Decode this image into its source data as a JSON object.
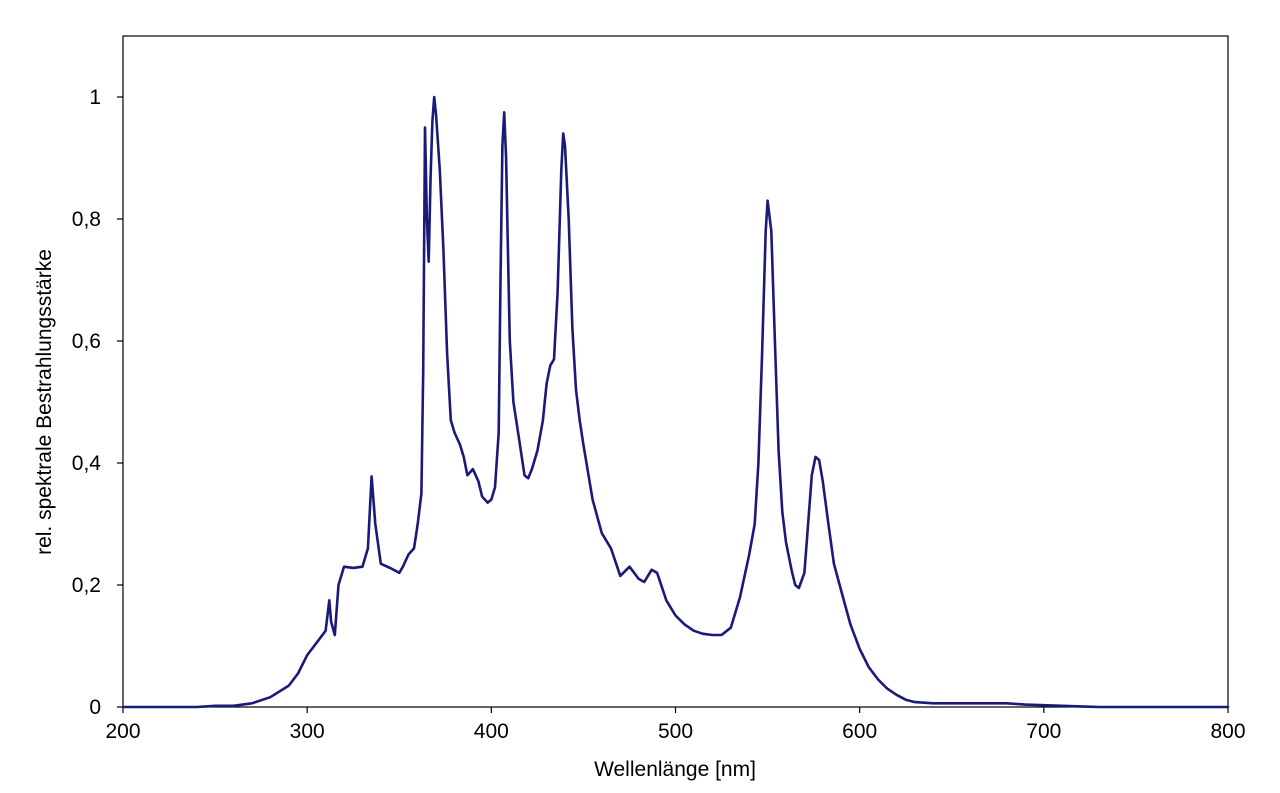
{
  "chart_data": {
    "type": "line",
    "title": "",
    "xlabel": "Wellenlänge [nm]",
    "ylabel": "rel. spektrale Bestrahlungsstärke",
    "xlim": [
      200,
      800
    ],
    "ylim": [
      0,
      1.1
    ],
    "x_ticks": [
      200,
      300,
      400,
      500,
      600,
      700,
      800
    ],
    "x_tick_labels": [
      "200",
      "300",
      "400",
      "500",
      "600",
      "700",
      "800"
    ],
    "y_ticks": [
      0,
      0.2,
      0.4,
      0.6,
      0.8,
      1.0
    ],
    "y_tick_labels": [
      "0",
      "0,2",
      "0,4",
      "0,6",
      "0,8",
      "1"
    ],
    "grid": false,
    "legend": "none",
    "line_color": "#1a1a7a",
    "series": [
      {
        "x": [
          200,
          240,
          250,
          260,
          270,
          280,
          290,
          295,
          300,
          305,
          310,
          312,
          313,
          315,
          317,
          320,
          325,
          330,
          333,
          335,
          337,
          340,
          345,
          350,
          352,
          355,
          358,
          360,
          362,
          363,
          364,
          365,
          366,
          367,
          368,
          369,
          370,
          372,
          374,
          376,
          378,
          380,
          383,
          385,
          387,
          390,
          393,
          395,
          398,
          400,
          402,
          404,
          405,
          406,
          407,
          408,
          409,
          410,
          412,
          415,
          418,
          420,
          422,
          425,
          428,
          430,
          432,
          434,
          436,
          438,
          439,
          440,
          442,
          444,
          446,
          448,
          450,
          455,
          460,
          465,
          470,
          475,
          480,
          483,
          485,
          487,
          490,
          495,
          500,
          505,
          510,
          515,
          520,
          525,
          530,
          535,
          540,
          543,
          545,
          547,
          549,
          550,
          552,
          554,
          556,
          558,
          560,
          563,
          565,
          567,
          570,
          572,
          574,
          576,
          578,
          580,
          583,
          586,
          590,
          595,
          600,
          605,
          610,
          615,
          620,
          625,
          630,
          640,
          650,
          660,
          670,
          680,
          690,
          700,
          710,
          720,
          730,
          740,
          800
        ],
        "y": [
          0,
          0,
          0.002,
          0.002,
          0.006,
          0.016,
          0.035,
          0.055,
          0.085,
          0.105,
          0.125,
          0.175,
          0.14,
          0.118,
          0.2,
          0.23,
          0.228,
          0.23,
          0.26,
          0.378,
          0.3,
          0.235,
          0.228,
          0.22,
          0.23,
          0.25,
          0.26,
          0.3,
          0.35,
          0.55,
          0.95,
          0.8,
          0.73,
          0.87,
          0.96,
          1.0,
          0.97,
          0.88,
          0.75,
          0.58,
          0.47,
          0.45,
          0.43,
          0.41,
          0.38,
          0.39,
          0.37,
          0.345,
          0.335,
          0.34,
          0.36,
          0.45,
          0.7,
          0.92,
          0.975,
          0.9,
          0.75,
          0.6,
          0.5,
          0.44,
          0.38,
          0.375,
          0.39,
          0.42,
          0.47,
          0.53,
          0.56,
          0.57,
          0.68,
          0.88,
          0.94,
          0.92,
          0.8,
          0.62,
          0.52,
          0.47,
          0.43,
          0.34,
          0.285,
          0.26,
          0.215,
          0.23,
          0.21,
          0.205,
          0.215,
          0.225,
          0.22,
          0.175,
          0.15,
          0.135,
          0.125,
          0.12,
          0.118,
          0.118,
          0.13,
          0.18,
          0.25,
          0.3,
          0.4,
          0.58,
          0.78,
          0.83,
          0.78,
          0.6,
          0.42,
          0.32,
          0.27,
          0.225,
          0.2,
          0.195,
          0.22,
          0.3,
          0.38,
          0.41,
          0.405,
          0.37,
          0.3,
          0.235,
          0.19,
          0.135,
          0.095,
          0.065,
          0.045,
          0.03,
          0.02,
          0.012,
          0.008,
          0.006,
          0.006,
          0.006,
          0.006,
          0.006,
          0.004,
          0.003,
          0.002,
          0.001,
          0.0,
          0.0,
          0.0
        ]
      }
    ]
  }
}
